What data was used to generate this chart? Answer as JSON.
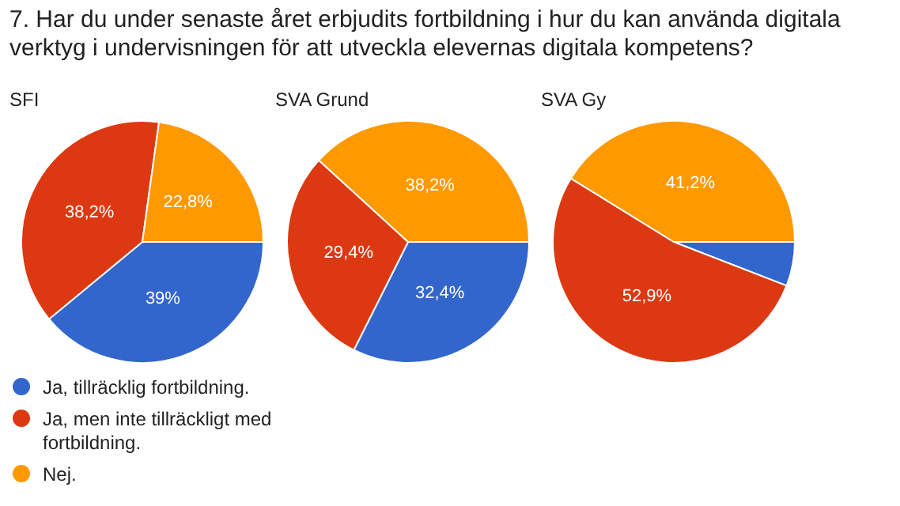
{
  "chart_data": {
    "type": "pie",
    "title": "7. Har du under senaste året erbjudits fortbildning i hur du kan använda digitala verktyg i undervisningen för att utveckla elevernas digitala kompetens?",
    "categories": [
      "Ja, tillräcklig fortbildning.",
      "Ja, men inte tillräckligt med fortbildning.",
      "Nej."
    ],
    "colors": [
      "#3366cc",
      "#dc3912",
      "#ff9900"
    ],
    "legend": "bottom",
    "series": [
      {
        "name": "SFI",
        "values": [
          39,
          38.2,
          22.8
        ],
        "value_labels": [
          "39%",
          "38,2%",
          "22,8%"
        ]
      },
      {
        "name": "SVA Grund",
        "values": [
          32.4,
          29.4,
          38.2
        ],
        "value_labels": [
          "32,4%",
          "29,4%",
          "38,2%"
        ]
      },
      {
        "name": "SVA Gy",
        "values": [
          5.9,
          52.9,
          41.2
        ],
        "value_labels": [
          null,
          "52,9%",
          "41,2%"
        ]
      }
    ]
  }
}
